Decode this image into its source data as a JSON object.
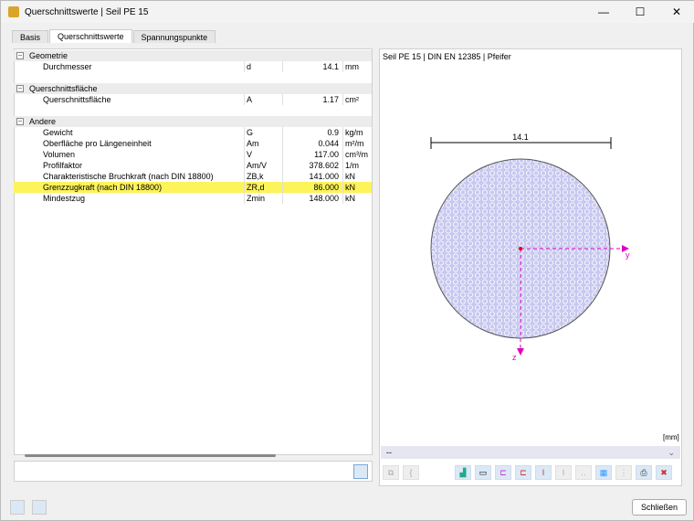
{
  "window": {
    "title": "Querschnittswerte | Seil PE 15"
  },
  "tabs": [
    {
      "label": "Basis"
    },
    {
      "label": "Querschnittswerte"
    },
    {
      "label": "Spannungspunkte"
    }
  ],
  "groups": [
    {
      "label": "Geometrie",
      "rows": [
        {
          "name": "Durchmesser",
          "symbol": "d",
          "value": "14.1",
          "unit": "mm"
        }
      ]
    },
    {
      "label": "Querschnittsfläche",
      "rows": [
        {
          "name": "Querschnittsfläche",
          "symbol": "A",
          "value": "1.17",
          "unit": "cm²"
        }
      ]
    },
    {
      "label": "Andere",
      "rows": [
        {
          "name": "Gewicht",
          "symbol": "G",
          "value": "0.9",
          "unit": "kg/m"
        },
        {
          "name": "Oberfläche pro Längeneinheit",
          "symbol": "Am",
          "value": "0.044",
          "unit": "m²/m"
        },
        {
          "name": "Volumen",
          "symbol": "V",
          "value": "117.00",
          "unit": "cm³/m"
        },
        {
          "name": "Profilfaktor",
          "symbol": "Am/V",
          "value": "378.602",
          "unit": "1/m"
        },
        {
          "name": "Charakteristische Bruchkraft (nach DIN 18800)",
          "symbol": "ZB,k",
          "value": "141.000",
          "unit": "kN"
        },
        {
          "name": "Grenzzugkraft (nach DIN 18800)",
          "symbol": "ZR,d",
          "value": "86.000",
          "unit": "kN",
          "highlight": true
        },
        {
          "name": "Mindestzug",
          "symbol": "Zmin",
          "value": "148.000",
          "unit": "kN"
        }
      ]
    }
  ],
  "graphic": {
    "title": "Seil PE 15 | DIN EN 12385 | Pfeifer",
    "dimension": "14.1",
    "axis_y": "y",
    "axis_z": "z",
    "unit": "[mm]",
    "dropdown": "--",
    "fill_color": "#c8c8f0",
    "axis_color": "#e000c0"
  },
  "footer": {
    "close_label": "Schließen"
  }
}
